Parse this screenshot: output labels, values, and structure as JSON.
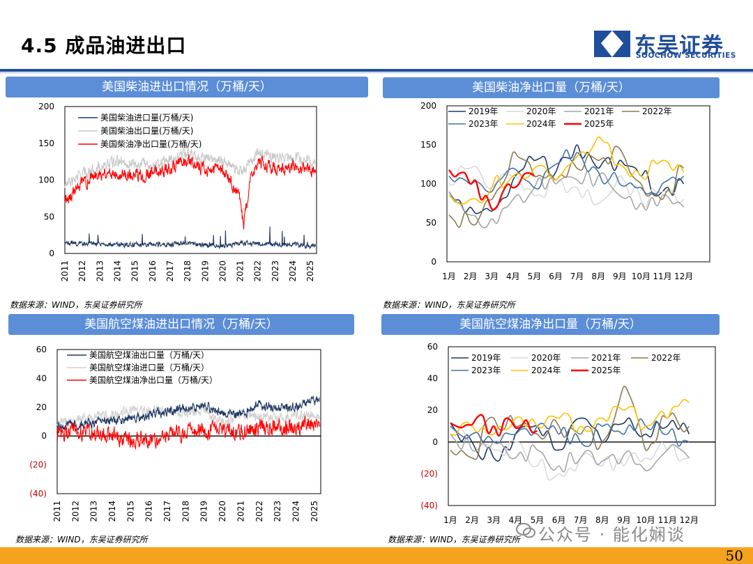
{
  "page_title": "4.5 成品油进出口",
  "logo": {
    "name_cn": "东吴证券",
    "name_en": "SOOCHOW SECURITIES"
  },
  "page_number": "50",
  "watermark": "公众号 · 能化娴谈",
  "panels": [
    {
      "title": "美国柴油进出口情况（万桶/天）",
      "source": "数据来源：WIND，东吴证券研究所"
    },
    {
      "title": "美国柴油净出口量（万桶/天）",
      "source": "数据来源：WIND，东吴证券研究所"
    },
    {
      "title": "美国航空煤油进出口情况（万桶/天）",
      "source": "数据来源：WIND，东吴证券研究所"
    },
    {
      "title": "美国航空煤油净出口量（万桶/天）",
      "source": "数据来源：WIND，东吴证券研究所"
    }
  ],
  "chart_data": [
    {
      "type": "line",
      "x_ticks": [
        "2011",
        "2012",
        "2013",
        "2014",
        "2015",
        "2016",
        "2017",
        "2018",
        "2019",
        "2020",
        "2021",
        "2022",
        "2023",
        "2024",
        "2025"
      ],
      "y_ticks": [
        "0",
        "50",
        "100",
        "150",
        "200"
      ],
      "ylim": [
        0,
        200
      ],
      "series": [
        {
          "name": "美国柴油进口量(万桶/天)",
          "color": "#1f3864",
          "level": 12,
          "noise": 5,
          "spike": 22,
          "anchors": [
            [
              2011,
              14
            ],
            [
              2014,
              12
            ],
            [
              2016,
              12
            ],
            [
              2018,
              13
            ],
            [
              2020,
              10
            ],
            [
              2021,
              14
            ],
            [
              2024,
              12
            ],
            [
              2025.3,
              10
            ]
          ]
        },
        {
          "name": "美国柴油出口量(万桶/天)",
          "color": "#c8c8c8",
          "noise": 12,
          "anchors": [
            [
              2011,
              92
            ],
            [
              2012,
              108
            ],
            [
              2013,
              118
            ],
            [
              2014,
              125
            ],
            [
              2016,
              120
            ],
            [
              2017,
              128
            ],
            [
              2018,
              138
            ],
            [
              2019,
              130
            ],
            [
              2020,
              128
            ],
            [
              2020.9,
              110
            ],
            [
              2021.5,
              120
            ],
            [
              2022,
              138
            ],
            [
              2023,
              130
            ],
            [
              2024,
              130
            ],
            [
              2025.3,
              125
            ]
          ]
        },
        {
          "name": "美国柴油净出口量(万桶/天)",
          "color": "#ff0000",
          "noise": 14,
          "anchors": [
            [
              2011,
              72
            ],
            [
              2012,
              95
            ],
            [
              2013,
              110
            ],
            [
              2014,
              110
            ],
            [
              2015,
              105
            ],
            [
              2016,
              110
            ],
            [
              2017,
              115
            ],
            [
              2018,
              125
            ],
            [
              2019,
              115
            ],
            [
              2020,
              115
            ],
            [
              2020.9,
              80
            ],
            [
              2021.2,
              40
            ],
            [
              2021.6,
              100
            ],
            [
              2022,
              125
            ],
            [
              2023,
              115
            ],
            [
              2024,
              118
            ],
            [
              2025.3,
              112
            ]
          ]
        }
      ]
    },
    {
      "type": "line",
      "x_ticks": [
        "1月",
        "2月",
        "3月",
        "4月",
        "5月",
        "6月",
        "7月",
        "8月",
        "9月",
        "10月",
        "11月",
        "12月"
      ],
      "y_ticks": [
        "0",
        "50",
        "100",
        "150",
        "200"
      ],
      "ylim": [
        0,
        200
      ],
      "series": [
        {
          "name": "2019年",
          "color": "#1f3864",
          "values": [
            90,
            70,
            65,
            105,
            130,
            115,
            150,
            120,
            130,
            110,
            90,
            100
          ]
        },
        {
          "name": "2020年",
          "color": "#d9d9d9",
          "values": [
            100,
            120,
            95,
            110,
            85,
            100,
            95,
            75,
            110,
            80,
            90,
            80
          ]
        },
        {
          "name": "2021年",
          "color": "#a6a6a6",
          "values": [
            90,
            60,
            55,
            80,
            95,
            100,
            105,
            110,
            85,
            75,
            85,
            70
          ]
        },
        {
          "name": "2022年",
          "color": "#8c7a4f",
          "values": [
            60,
            50,
            80,
            140,
            110,
            105,
            120,
            130,
            145,
            100,
            80,
            120
          ]
        },
        {
          "name": "2023年",
          "color": "#4472a8",
          "values": [
            110,
            100,
            90,
            120,
            95,
            125,
            140,
            115,
            100,
            95,
            100,
            110
          ]
        },
        {
          "name": "2024年",
          "color": "#ffc000",
          "values": [
            85,
            80,
            95,
            110,
            120,
            105,
            135,
            160,
            125,
            110,
            130,
            115
          ]
        },
        {
          "name": "2025年",
          "color": "#ff0000",
          "values": [
            118,
            100,
            68,
            95,
            110
          ]
        }
      ]
    },
    {
      "type": "line",
      "x_ticks": [
        "2011",
        "2012",
        "2013",
        "2014",
        "2015",
        "2016",
        "2017",
        "2018",
        "2019",
        "2020",
        "2021",
        "2022",
        "2023",
        "2024",
        "2025"
      ],
      "y_ticks": [
        "(40)",
        "(20)",
        "0",
        "20",
        "40",
        "60"
      ],
      "ylim": [
        -40,
        60
      ],
      "series": [
        {
          "name": "美国航空煤油出口量（万桶/天）",
          "color": "#1f3864",
          "noise": 5,
          "anchors": [
            [
              2011,
              7
            ],
            [
              2012,
              8
            ],
            [
              2013,
              9
            ],
            [
              2014,
              10
            ],
            [
              2015,
              12
            ],
            [
              2016,
              14
            ],
            [
              2017,
              17
            ],
            [
              2018,
              20
            ],
            [
              2019,
              21
            ],
            [
              2020,
              16
            ],
            [
              2021,
              15
            ],
            [
              2022,
              22
            ],
            [
              2023,
              19
            ],
            [
              2024,
              20
            ],
            [
              2025.3,
              26
            ]
          ]
        },
        {
          "name": "美国航空煤油进口量（万桶/天）",
          "color": "#d0d0d0",
          "noise": 6,
          "anchors": [
            [
              2011,
              9
            ],
            [
              2012,
              11
            ],
            [
              2013,
              13
            ],
            [
              2014,
              14
            ],
            [
              2015,
              18
            ],
            [
              2016,
              18
            ],
            [
              2017,
              18
            ],
            [
              2018,
              16
            ],
            [
              2019,
              18
            ],
            [
              2020,
              10
            ],
            [
              2021,
              14
            ],
            [
              2022,
              14
            ],
            [
              2023,
              13
            ],
            [
              2024,
              14
            ],
            [
              2025.3,
              15
            ]
          ]
        },
        {
          "name": "美国航空煤油净出口量（万桶/天）",
          "color": "#ff0000",
          "noise": 9,
          "anchors": [
            [
              2011,
              2
            ],
            [
              2012,
              3
            ],
            [
              2013,
              2
            ],
            [
              2014,
              0
            ],
            [
              2015,
              -2
            ],
            [
              2016,
              -3
            ],
            [
              2017,
              0
            ],
            [
              2018,
              3
            ],
            [
              2019,
              4
            ],
            [
              2020,
              5
            ],
            [
              2021,
              2
            ],
            [
              2022,
              7
            ],
            [
              2023,
              5
            ],
            [
              2024,
              6
            ],
            [
              2025.3,
              10
            ]
          ]
        }
      ]
    },
    {
      "type": "line",
      "x_ticks": [
        "1月",
        "2月",
        "3月",
        "4月",
        "5月",
        "6月",
        "7月",
        "8月",
        "9月",
        "10月",
        "11月",
        "12月"
      ],
      "y_ticks": [
        "(40)",
        "(20)",
        "0",
        "20",
        "40",
        "60"
      ],
      "ylim": [
        -40,
        60
      ],
      "series": [
        {
          "name": "2019年",
          "color": "#1f3864",
          "values": [
            12,
            0,
            -10,
            5,
            10,
            -5,
            15,
            0,
            12,
            5,
            10,
            5
          ]
        },
        {
          "name": "2020年",
          "color": "#d9d9d9",
          "values": [
            10,
            5,
            -5,
            0,
            -15,
            -20,
            -10,
            -15,
            -15,
            -10,
            -5,
            -10
          ]
        },
        {
          "name": "2021年",
          "color": "#a6a6a6",
          "values": [
            5,
            -5,
            0,
            -10,
            -5,
            -15,
            -10,
            -12,
            -8,
            -18,
            -5,
            -10
          ]
        },
        {
          "name": "2022年",
          "color": "#8c7a4f",
          "values": [
            -5,
            -10,
            15,
            10,
            5,
            10,
            5,
            0,
            35,
            -5,
            15,
            10
          ]
        },
        {
          "name": "2023年",
          "color": "#4472a8",
          "values": [
            10,
            5,
            0,
            5,
            10,
            5,
            0,
            10,
            5,
            10,
            5,
            0
          ]
        },
        {
          "name": "2024年",
          "color": "#ffc000",
          "values": [
            5,
            10,
            5,
            15,
            10,
            15,
            10,
            15,
            20,
            10,
            15,
            25
          ]
        },
        {
          "name": "2025年",
          "color": "#ff0000",
          "values": [
            12,
            11,
            10,
            9,
            7
          ]
        }
      ]
    }
  ]
}
